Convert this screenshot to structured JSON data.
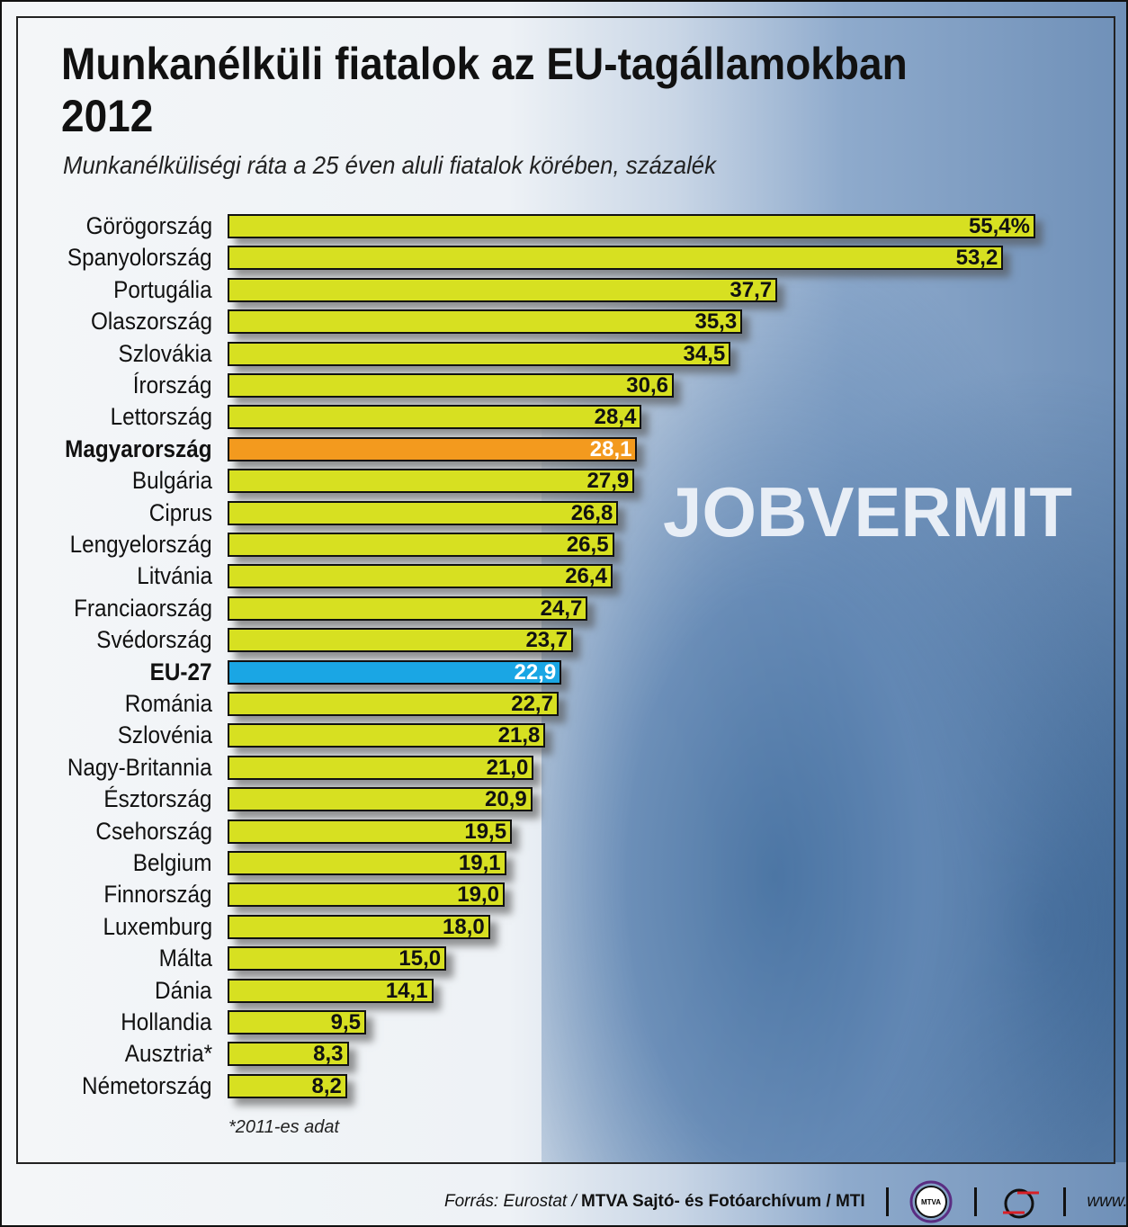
{
  "chart_data": {
    "type": "bar",
    "title": "Munkanélküli fiatalok az EU-tagállamokban 2012",
    "title_line1": "Munkanélküli fiatalok az EU-tagállamokban",
    "title_line2": "2012",
    "subtitle": "Munkanélküliségi ráta a 25 éven aluli fiatalok körében, százalék",
    "categories": [
      "Görögország",
      "Spanyolország",
      "Portugália",
      "Olaszország",
      "Szlovákia",
      "Írország",
      "Lettország",
      "Magyarország",
      "Bulgária",
      "Ciprus",
      "Lengyelország",
      "Litvánia",
      "Franciaország",
      "Svédország",
      "EU-27",
      "Románia",
      "Szlovénia",
      "Nagy-Britannia",
      "Észtország",
      "Csehország",
      "Belgium",
      "Finnország",
      "Luxemburg",
      "Málta",
      "Dánia",
      "Hollandia",
      "Ausztria*",
      "Németország"
    ],
    "values": [
      55.4,
      53.2,
      37.7,
      35.3,
      34.5,
      30.6,
      28.4,
      28.1,
      27.9,
      26.8,
      26.5,
      26.4,
      24.7,
      23.7,
      22.9,
      22.7,
      21.8,
      21.0,
      20.9,
      19.5,
      19.1,
      19.0,
      18.0,
      15.0,
      14.1,
      9.5,
      8.3,
      8.2
    ],
    "value_labels": [
      "55,4%",
      "53,2",
      "37,7",
      "35,3",
      "34,5",
      "30,6",
      "28,4",
      "28,1",
      "27,9",
      "26,8",
      "26,5",
      "26,4",
      "24,7",
      "23,7",
      "22,9",
      "22,7",
      "21,8",
      "21,0",
      "20,9",
      "19,5",
      "19,1",
      "19,0",
      "18,0",
      "15,0",
      "14,1",
      "9,5",
      "8,3",
      "8,2"
    ],
    "highlight": {
      "Magyarország": "#f39a1e",
      "EU-27": "#1aa6e4"
    },
    "bar_color": "#d7e021",
    "xlim": [
      0,
      55.4
    ],
    "xlabel": "",
    "ylabel": "",
    "note": "*2011-es adat"
  },
  "background_text": "JOBVERMIT",
  "footer": {
    "source_prefix": "Forrás: Eurostat / ",
    "source_bold": "MTVA Sajtó- és Fotóarchívum / MTI",
    "mtva_logo": "MTVA",
    "url": "www.mti.hu"
  }
}
